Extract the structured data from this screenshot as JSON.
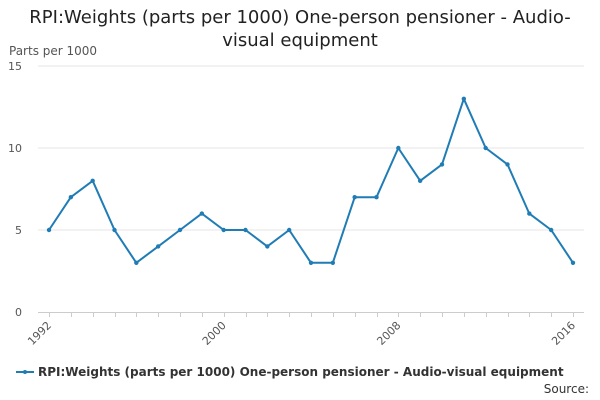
{
  "chart_data": {
    "type": "line",
    "title": "RPI:Weights (parts per 1000) One-person pensioner - Audio-visual equipment",
    "title_lines": [
      "RPI:Weights (parts per 1000) One-person pensioner - Audio-",
      "visual equipment"
    ],
    "ylabel": "Parts per 1000",
    "xlabel": "",
    "ylim": [
      0,
      15
    ],
    "yticks": [
      0,
      5,
      10,
      15
    ],
    "xticks": [
      1992,
      2000,
      2008,
      2016
    ],
    "x": [
      1992,
      1993,
      1994,
      1995,
      1996,
      1997,
      1998,
      1999,
      2000,
      2001,
      2002,
      2003,
      2004,
      2005,
      2006,
      2007,
      2008,
      2009,
      2010,
      2011,
      2012,
      2013,
      2014,
      2015,
      2016
    ],
    "series": [
      {
        "name": "RPI:Weights (parts per 1000) One-person pensioner - Audio-visual equipment",
        "color": "#1f7cb5",
        "values": [
          5,
          7,
          8,
          5,
          3,
          4,
          5,
          6,
          5,
          5,
          4,
          5,
          3,
          3,
          7,
          7,
          10,
          8,
          9,
          13,
          10,
          9,
          6,
          5,
          3
        ]
      }
    ],
    "grid": true,
    "legend_position": "bottom-left"
  },
  "footer": {
    "source_label": "Source:"
  }
}
